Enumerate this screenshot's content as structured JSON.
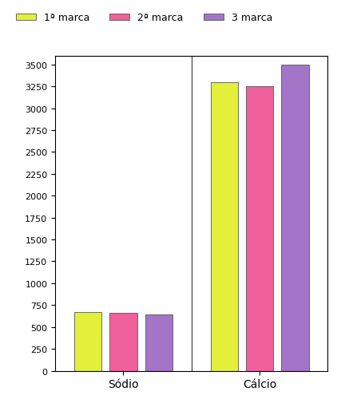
{
  "chart_data": {
    "type": "bar",
    "categories": [
      "Sódio",
      "Cálcio"
    ],
    "series": [
      {
        "name": "1ª marca",
        "color": "#e4ef3a",
        "values": [
          670,
          3300
        ]
      },
      {
        "name": "2ª marca",
        "color": "#f0609a",
        "values": [
          660,
          3250
        ]
      },
      {
        "name": "3 marca",
        "color": "#a474c9",
        "values": [
          640,
          3500
        ]
      }
    ],
    "ylim": [
      0,
      3600
    ],
    "yticks": [
      0,
      250,
      500,
      750,
      1000,
      1250,
      1500,
      1750,
      2000,
      2250,
      2500,
      2750,
      3000,
      3250,
      3500
    ],
    "legend": "upper left",
    "grid": false
  }
}
